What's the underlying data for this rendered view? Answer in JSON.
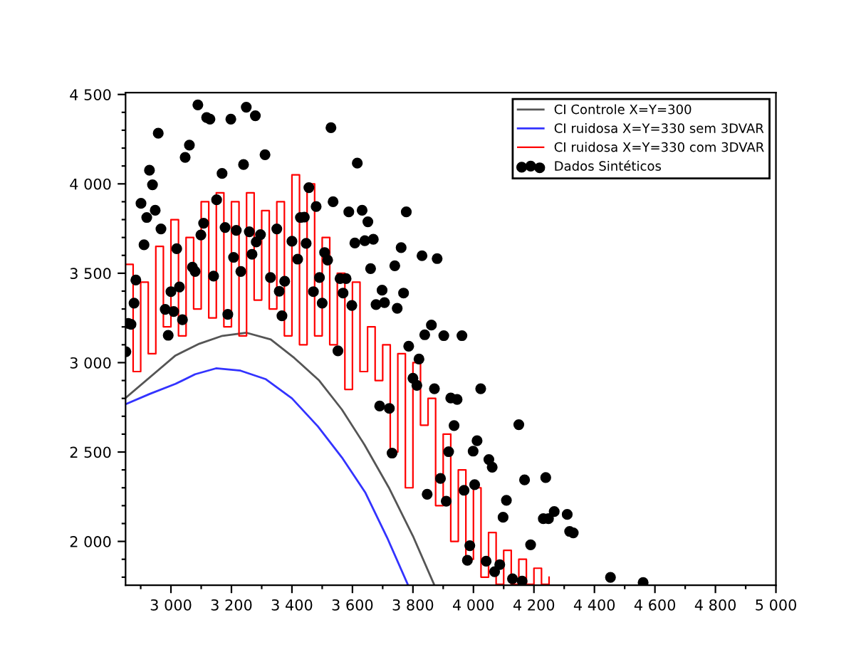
{
  "chart_data": {
    "type": "line",
    "xlim": [
      2850,
      5000
    ],
    "ylim": [
      1755,
      4510
    ],
    "xticks": [
      {
        "value": 2900,
        "label": null
      },
      {
        "value": 3000,
        "label": "3 000"
      },
      {
        "value": 3100,
        "label": null
      },
      {
        "value": 3200,
        "label": "3 200"
      },
      {
        "value": 3300,
        "label": null
      },
      {
        "value": 3400,
        "label": "3 400"
      },
      {
        "value": 3500,
        "label": null
      },
      {
        "value": 3600,
        "label": "3 600"
      },
      {
        "value": 3700,
        "label": null
      },
      {
        "value": 3800,
        "label": "3 800"
      },
      {
        "value": 3900,
        "label": null
      },
      {
        "value": 4000,
        "label": "4 000"
      },
      {
        "value": 4100,
        "label": null
      },
      {
        "value": 4200,
        "label": "4 200"
      },
      {
        "value": 4300,
        "label": null
      },
      {
        "value": 4400,
        "label": "4 400"
      },
      {
        "value": 4500,
        "label": null
      },
      {
        "value": 4600,
        "label": "4 600"
      },
      {
        "value": 4700,
        "label": null
      },
      {
        "value": 4800,
        "label": "4 800"
      },
      {
        "value": 4900,
        "label": null
      },
      {
        "value": 5000,
        "label": "5 000"
      }
    ],
    "yticks": [
      {
        "value": 1800,
        "label": null
      },
      {
        "value": 1900,
        "label": null
      },
      {
        "value": 2000,
        "label": "2 000"
      },
      {
        "value": 2100,
        "label": null
      },
      {
        "value": 2200,
        "label": null
      },
      {
        "value": 2300,
        "label": null
      },
      {
        "value": 2400,
        "label": null
      },
      {
        "value": 2500,
        "label": "2 500"
      },
      {
        "value": 2600,
        "label": null
      },
      {
        "value": 2700,
        "label": null
      },
      {
        "value": 2800,
        "label": null
      },
      {
        "value": 2900,
        "label": null
      },
      {
        "value": 3000,
        "label": "3 000"
      },
      {
        "value": 3100,
        "label": null
      },
      {
        "value": 3200,
        "label": null
      },
      {
        "value": 3300,
        "label": null
      },
      {
        "value": 3400,
        "label": null
      },
      {
        "value": 3500,
        "label": "3 500"
      },
      {
        "value": 3600,
        "label": null
      },
      {
        "value": 3700,
        "label": null
      },
      {
        "value": 3800,
        "label": null
      },
      {
        "value": 3900,
        "label": null
      },
      {
        "value": 4000,
        "label": "4 000"
      },
      {
        "value": 4100,
        "label": null
      },
      {
        "value": 4200,
        "label": null
      },
      {
        "value": 4300,
        "label": null
      },
      {
        "value": 4400,
        "label": null
      },
      {
        "value": 4500,
        "label": "4 500"
      }
    ],
    "grid": false,
    "legend": "top right",
    "marker": "none",
    "series": [
      {
        "name": "CI Controle X=Y=300",
        "color": "#555555",
        "x": [
          2850,
          3015,
          3094,
          3170,
          3250,
          3330,
          3408,
          3490,
          3565,
          3640,
          3720,
          3800,
          3871
        ],
        "values": [
          2802,
          3040,
          3106,
          3150,
          3167,
          3130,
          3026,
          2900,
          2738,
          2540,
          2302,
          2030,
          1755
        ]
      },
      {
        "name": "CI ruidosa X=Y=330 sem 3DVAR",
        "color": "#3333ff",
        "x": [
          2850,
          2930,
          3015,
          3080,
          3149,
          3230,
          3314,
          3400,
          3486,
          3565,
          3643,
          3715,
          3784
        ],
        "values": [
          2767,
          2825,
          2881,
          2935,
          2968,
          2955,
          2907,
          2800,
          2643,
          2470,
          2272,
          2020,
          1755
        ]
      },
      {
        "name": "CI ruidosa X=Y=330 com 3DVAR",
        "type": "step",
        "color": "#ff0000",
        "x": [
          2850,
          2875,
          2900,
          2925,
          2950,
          2975,
          3000,
          3025,
          3050,
          3075,
          3100,
          3125,
          3150,
          3175,
          3200,
          3225,
          3250,
          3275,
          3300,
          3325,
          3350,
          3375,
          3400,
          3425,
          3450,
          3475,
          3500,
          3525,
          3550,
          3575,
          3600,
          3625,
          3650,
          3675,
          3700,
          3725,
          3750,
          3775,
          3800,
          3825,
          3850,
          3875,
          3900,
          3925,
          3950,
          3975,
          4000,
          4025,
          4050,
          4075,
          4100,
          4125,
          4150,
          4175,
          4200,
          4225,
          4250
        ],
        "values": [
          3550,
          2950,
          3450,
          3050,
          3650,
          3200,
          3800,
          3150,
          3700,
          3300,
          3900,
          3250,
          3950,
          3200,
          3900,
          3150,
          3950,
          3350,
          3850,
          3300,
          3900,
          3150,
          4050,
          3100,
          4000,
          3150,
          3700,
          3100,
          3500,
          2850,
          3450,
          2950,
          3200,
          2900,
          3100,
          2500,
          3050,
          2300,
          3000,
          2650,
          2800,
          2200,
          2600,
          2000,
          2400,
          1900,
          2300,
          1800,
          2050,
          1760,
          1950,
          1760,
          1900,
          1760,
          1850,
          1760,
          1800
        ]
      },
      {
        "name": "Dados Sintéticos",
        "type": "scatter",
        "color": "#000000",
        "marker": "circle",
        "x": [
          3089,
          3118,
          3129,
          3198,
          3249,
          3279,
          2958,
          3061,
          3047,
          3311,
          3240,
          3169,
          2929,
          2939,
          2901,
          2920,
          2948,
          2967,
          2911,
          3151,
          3108,
          3099,
          3179,
          3216,
          3259,
          3296,
          3282,
          3268,
          3350,
          3207,
          3019,
          3071,
          3080,
          3141,
          3231,
          3329,
          3376,
          3358,
          3000,
          3028,
          2884,
          2878,
          2981,
          3009,
          3038,
          2859,
          2868,
          2991,
          3188,
          3367,
          2851,
          3456,
          3536,
          3480,
          3428,
          3441,
          3447,
          3400,
          3419,
          3508,
          3518,
          3491,
          3471,
          3500,
          3529,
          3616,
          3588,
          3632,
          3651,
          3608,
          3641,
          3669,
          3660,
          3740,
          3761,
          3778,
          3769,
          3748,
          3698,
          3706,
          3678,
          3559,
          3579,
          3569,
          3598,
          3830,
          3880,
          3962,
          3839,
          3861,
          3902,
          3786,
          3552,
          3820,
          3800,
          3813,
          3871,
          3690,
          3722,
          3731,
          3847,
          3891,
          3910,
          3918,
          3969,
          3925,
          3946,
          3936,
          3999,
          4012,
          4004,
          4024,
          4051,
          4062,
          4150,
          4169,
          4239,
          4109,
          4098,
          4231,
          4248,
          4267,
          4310,
          4318,
          4330,
          4189,
          3988,
          3980,
          4042,
          4087,
          4070,
          4129,
          4161,
          4453,
          4561
        ],
        "values": [
          4442,
          4371,
          4362,
          4362,
          4429,
          4381,
          4283,
          4217,
          4148,
          4163,
          4108,
          4058,
          4076,
          3995,
          3891,
          3812,
          3852,
          3748,
          3659,
          3911,
          3780,
          3714,
          3756,
          3740,
          3732,
          3716,
          3675,
          3606,
          3748,
          3589,
          3637,
          3534,
          3510,
          3484,
          3510,
          3476,
          3455,
          3399,
          3397,
          3423,
          3462,
          3333,
          3298,
          3286,
          3240,
          3219,
          3214,
          3153,
          3270,
          3262,
          3061,
          3979,
          3900,
          3873,
          3812,
          3814,
          3667,
          3679,
          3579,
          3616,
          3574,
          3476,
          3397,
          3333,
          4314,
          4116,
          3843,
          3852,
          3788,
          3669,
          3682,
          3690,
          3526,
          3542,
          3643,
          3843,
          3389,
          3304,
          3405,
          3336,
          3325,
          3470,
          3470,
          3389,
          3320,
          3598,
          3582,
          3151,
          3156,
          3210,
          3151,
          3092,
          3066,
          3020,
          2913,
          2873,
          2854,
          2757,
          2744,
          2494,
          2264,
          2352,
          2225,
          2502,
          2286,
          2802,
          2794,
          2648,
          2505,
          2563,
          2317,
          2854,
          2458,
          2415,
          2653,
          2344,
          2357,
          2230,
          2135,
          2127,
          2127,
          2167,
          2151,
          2056,
          2048,
          1981,
          1976,
          1894,
          1889,
          1870,
          1831,
          1791,
          1778,
          1799,
          1770
        ]
      }
    ]
  }
}
